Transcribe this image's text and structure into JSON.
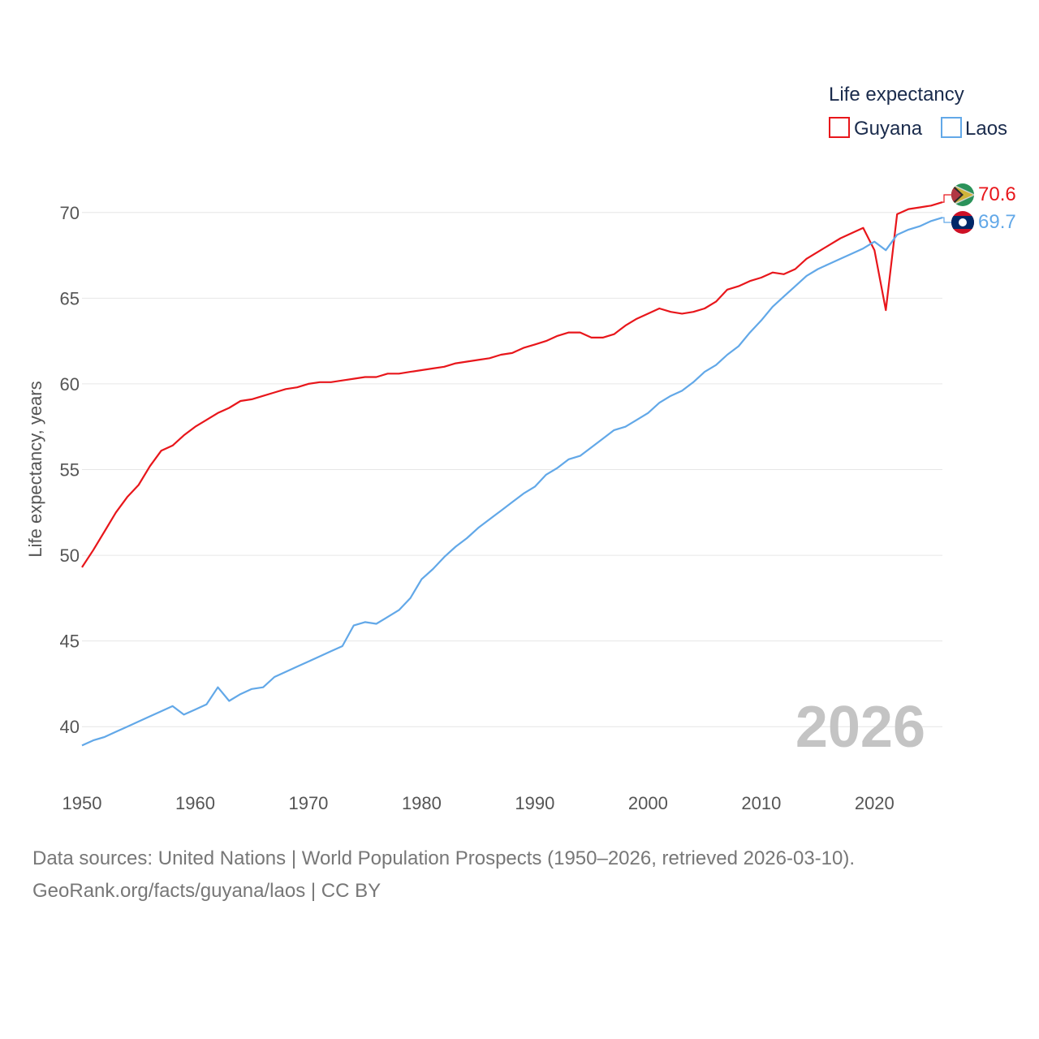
{
  "chart_data": {
    "type": "line",
    "legend_title": "Life expectancy",
    "ylabel": "Life expectancy, years",
    "xlabel": "",
    "xlim": [
      1950,
      2026
    ],
    "ylim": [
      37.5,
      72.5
    ],
    "yticks": [
      40,
      45,
      50,
      55,
      60,
      65,
      70
    ],
    "xticks": [
      1950,
      1960,
      1970,
      1980,
      1990,
      2000,
      2010,
      2020
    ],
    "year_label": "2026",
    "legend_position": "top-right",
    "series": [
      {
        "name": "Guyana",
        "color": "#e8161b",
        "end_value": 70.6,
        "end_label": "70.6",
        "points": [
          [
            1950,
            49.3
          ],
          [
            1951,
            50.3
          ],
          [
            1952,
            51.4
          ],
          [
            1953,
            52.5
          ],
          [
            1954,
            53.4
          ],
          [
            1955,
            54.1
          ],
          [
            1956,
            55.2
          ],
          [
            1957,
            56.1
          ],
          [
            1958,
            56.4
          ],
          [
            1959,
            57.0
          ],
          [
            1960,
            57.5
          ],
          [
            1961,
            57.9
          ],
          [
            1962,
            58.3
          ],
          [
            1963,
            58.6
          ],
          [
            1964,
            59.0
          ],
          [
            1965,
            59.1
          ],
          [
            1966,
            59.3
          ],
          [
            1967,
            59.5
          ],
          [
            1968,
            59.7
          ],
          [
            1969,
            59.8
          ],
          [
            1970,
            60.0
          ],
          [
            1971,
            60.1
          ],
          [
            1972,
            60.1
          ],
          [
            1973,
            60.2
          ],
          [
            1974,
            60.3
          ],
          [
            1975,
            60.4
          ],
          [
            1976,
            60.4
          ],
          [
            1977,
            60.6
          ],
          [
            1978,
            60.6
          ],
          [
            1979,
            60.7
          ],
          [
            1980,
            60.8
          ],
          [
            1981,
            60.9
          ],
          [
            1982,
            61.0
          ],
          [
            1983,
            61.2
          ],
          [
            1984,
            61.3
          ],
          [
            1985,
            61.4
          ],
          [
            1986,
            61.5
          ],
          [
            1987,
            61.7
          ],
          [
            1988,
            61.8
          ],
          [
            1989,
            62.1
          ],
          [
            1990,
            62.3
          ],
          [
            1991,
            62.5
          ],
          [
            1992,
            62.8
          ],
          [
            1993,
            63.0
          ],
          [
            1994,
            63.0
          ],
          [
            1995,
            62.7
          ],
          [
            1996,
            62.7
          ],
          [
            1997,
            62.9
          ],
          [
            1998,
            63.4
          ],
          [
            1999,
            63.8
          ],
          [
            2000,
            64.1
          ],
          [
            2001,
            64.4
          ],
          [
            2002,
            64.2
          ],
          [
            2003,
            64.1
          ],
          [
            2004,
            64.2
          ],
          [
            2005,
            64.4
          ],
          [
            2006,
            64.8
          ],
          [
            2007,
            65.5
          ],
          [
            2008,
            65.7
          ],
          [
            2009,
            66.0
          ],
          [
            2010,
            66.2
          ],
          [
            2011,
            66.5
          ],
          [
            2012,
            66.4
          ],
          [
            2013,
            66.7
          ],
          [
            2014,
            67.3
          ],
          [
            2015,
            67.7
          ],
          [
            2016,
            68.1
          ],
          [
            2017,
            68.5
          ],
          [
            2018,
            68.8
          ],
          [
            2019,
            69.1
          ],
          [
            2020,
            67.8
          ],
          [
            2021,
            64.3
          ],
          [
            2022,
            69.9
          ],
          [
            2023,
            70.2
          ],
          [
            2024,
            70.3
          ],
          [
            2025,
            70.4
          ],
          [
            2026,
            70.6
          ]
        ]
      },
      {
        "name": "Laos",
        "color": "#62a8e8",
        "end_value": 69.7,
        "end_label": "69.7",
        "points": [
          [
            1950,
            38.9
          ],
          [
            1951,
            39.2
          ],
          [
            1952,
            39.4
          ],
          [
            1953,
            39.7
          ],
          [
            1954,
            40.0
          ],
          [
            1955,
            40.3
          ],
          [
            1956,
            40.6
          ],
          [
            1957,
            40.9
          ],
          [
            1958,
            41.2
          ],
          [
            1959,
            40.7
          ],
          [
            1960,
            41.0
          ],
          [
            1961,
            41.3
          ],
          [
            1962,
            42.3
          ],
          [
            1963,
            41.5
          ],
          [
            1964,
            41.9
          ],
          [
            1965,
            42.2
          ],
          [
            1966,
            42.3
          ],
          [
            1967,
            42.9
          ],
          [
            1968,
            43.2
          ],
          [
            1969,
            43.5
          ],
          [
            1970,
            43.8
          ],
          [
            1971,
            44.1
          ],
          [
            1972,
            44.4
          ],
          [
            1973,
            44.7
          ],
          [
            1974,
            45.9
          ],
          [
            1975,
            46.1
          ],
          [
            1976,
            46.0
          ],
          [
            1977,
            46.4
          ],
          [
            1978,
            46.8
          ],
          [
            1979,
            47.5
          ],
          [
            1980,
            48.6
          ],
          [
            1981,
            49.2
          ],
          [
            1982,
            49.9
          ],
          [
            1983,
            50.5
          ],
          [
            1984,
            51.0
          ],
          [
            1985,
            51.6
          ],
          [
            1986,
            52.1
          ],
          [
            1987,
            52.6
          ],
          [
            1988,
            53.1
          ],
          [
            1989,
            53.6
          ],
          [
            1990,
            54.0
          ],
          [
            1991,
            54.7
          ],
          [
            1992,
            55.1
          ],
          [
            1993,
            55.6
          ],
          [
            1994,
            55.8
          ],
          [
            1995,
            56.3
          ],
          [
            1996,
            56.8
          ],
          [
            1997,
            57.3
          ],
          [
            1998,
            57.5
          ],
          [
            1999,
            57.9
          ],
          [
            2000,
            58.3
          ],
          [
            2001,
            58.9
          ],
          [
            2002,
            59.3
          ],
          [
            2003,
            59.6
          ],
          [
            2004,
            60.1
          ],
          [
            2005,
            60.7
          ],
          [
            2006,
            61.1
          ],
          [
            2007,
            61.7
          ],
          [
            2008,
            62.2
          ],
          [
            2009,
            63.0
          ],
          [
            2010,
            63.7
          ],
          [
            2011,
            64.5
          ],
          [
            2012,
            65.1
          ],
          [
            2013,
            65.7
          ],
          [
            2014,
            66.3
          ],
          [
            2015,
            66.7
          ],
          [
            2016,
            67.0
          ],
          [
            2017,
            67.3
          ],
          [
            2018,
            67.6
          ],
          [
            2019,
            67.9
          ],
          [
            2020,
            68.3
          ],
          [
            2021,
            67.8
          ],
          [
            2022,
            68.7
          ],
          [
            2023,
            69.0
          ],
          [
            2024,
            69.2
          ],
          [
            2025,
            69.5
          ],
          [
            2026,
            69.7
          ]
        ]
      }
    ]
  },
  "footer": {
    "line1": "Data sources: United Nations | World Population Prospects (1950–2026, retrieved 2026-03-10).",
    "line2": "GeoRank.org/facts/guyana/laos | CC BY"
  }
}
